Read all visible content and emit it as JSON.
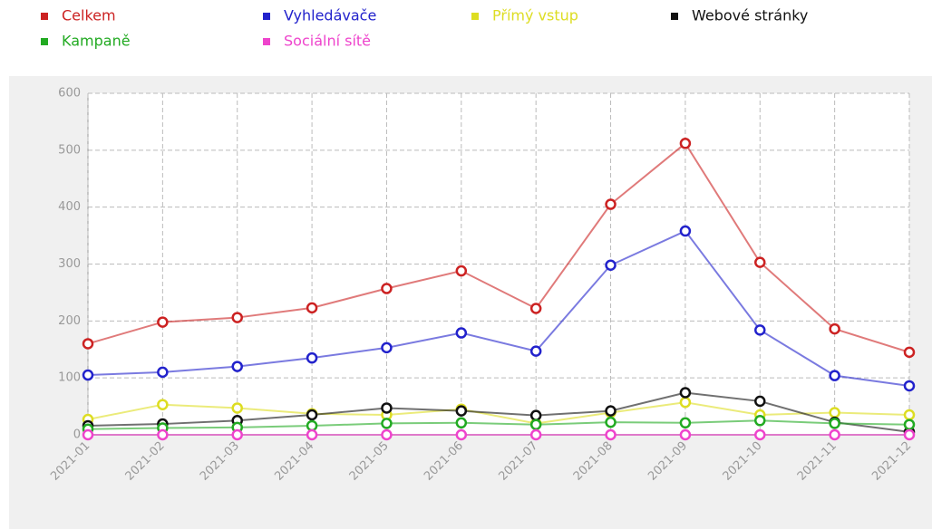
{
  "chart_data": {
    "type": "line",
    "categories": [
      "2021-01",
      "2021-02",
      "2021-03",
      "2021-04",
      "2021-05",
      "2021-06",
      "2021-07",
      "2021-08",
      "2021-09",
      "2021-10",
      "2021-11",
      "2021-12"
    ],
    "series": [
      {
        "name": "Celkem",
        "color": "#cc2222",
        "values": [
          160,
          198,
          206,
          223,
          257,
          288,
          222,
          405,
          512,
          303,
          186,
          145
        ]
      },
      {
        "name": "Vyhledávače",
        "color": "#2222cc",
        "values": [
          105,
          110,
          120,
          135,
          153,
          179,
          147,
          298,
          358,
          184,
          104,
          86
        ]
      },
      {
        "name": "Přímý vstup",
        "color": "#dddd22",
        "values": [
          27,
          53,
          47,
          37,
          35,
          45,
          20,
          39,
          57,
          35,
          39,
          35
        ]
      },
      {
        "name": "Webové stránky",
        "color": "#111111",
        "values": [
          16,
          19,
          25,
          35,
          47,
          42,
          34,
          42,
          74,
          59,
          22,
          5
        ]
      },
      {
        "name": "Kampaně",
        "color": "#22aa22",
        "values": [
          10,
          12,
          13,
          16,
          20,
          21,
          18,
          22,
          21,
          25,
          20,
          18
        ]
      },
      {
        "name": "Sociální sítě",
        "color": "#ee44cc",
        "values": [
          0,
          0,
          0,
          0,
          0,
          0,
          0,
          0,
          0,
          0,
          0,
          0
        ]
      }
    ],
    "ylim": [
      0,
      600
    ],
    "yticks": [
      0,
      100,
      200,
      300,
      400,
      500,
      600
    ],
    "grid": true,
    "legend": "top"
  }
}
